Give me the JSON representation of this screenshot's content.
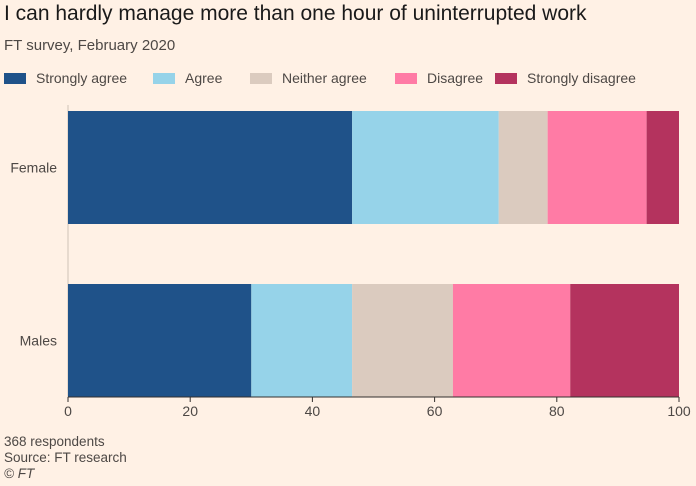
{
  "chart_data": {
    "type": "bar",
    "orientation": "horizontal",
    "stacked": true,
    "title": "I can hardly manage more than one hour of uninterrupted work",
    "subtitle": "FT survey, February 2020",
    "categories": [
      "Female",
      "Males"
    ],
    "series": [
      {
        "name": "Strongly agree",
        "color": "#1f5289",
        "values": [
          46.5,
          30
        ]
      },
      {
        "name": "Agree",
        "color": "#96d3e9",
        "values": [
          24,
          16.5
        ]
      },
      {
        "name": "Neither agree",
        "color": "#dbcbbf",
        "values": [
          8,
          16.5
        ]
      },
      {
        "name": "Disagree",
        "color": "#ff7ba5",
        "values": [
          16.2,
          19.2
        ]
      },
      {
        "name": "Strongly disagree",
        "color": "#b4335e",
        "values": [
          5.3,
          17.8
        ]
      }
    ],
    "xlim": [
      0,
      100
    ],
    "xticks": [
      0,
      20,
      40,
      60,
      80,
      100
    ],
    "xlabel": "",
    "ylabel": "",
    "grid": false,
    "legend_position": "top"
  },
  "footer": {
    "note": "368 respondents",
    "source": "Source: FT research",
    "credit": "© FT"
  }
}
